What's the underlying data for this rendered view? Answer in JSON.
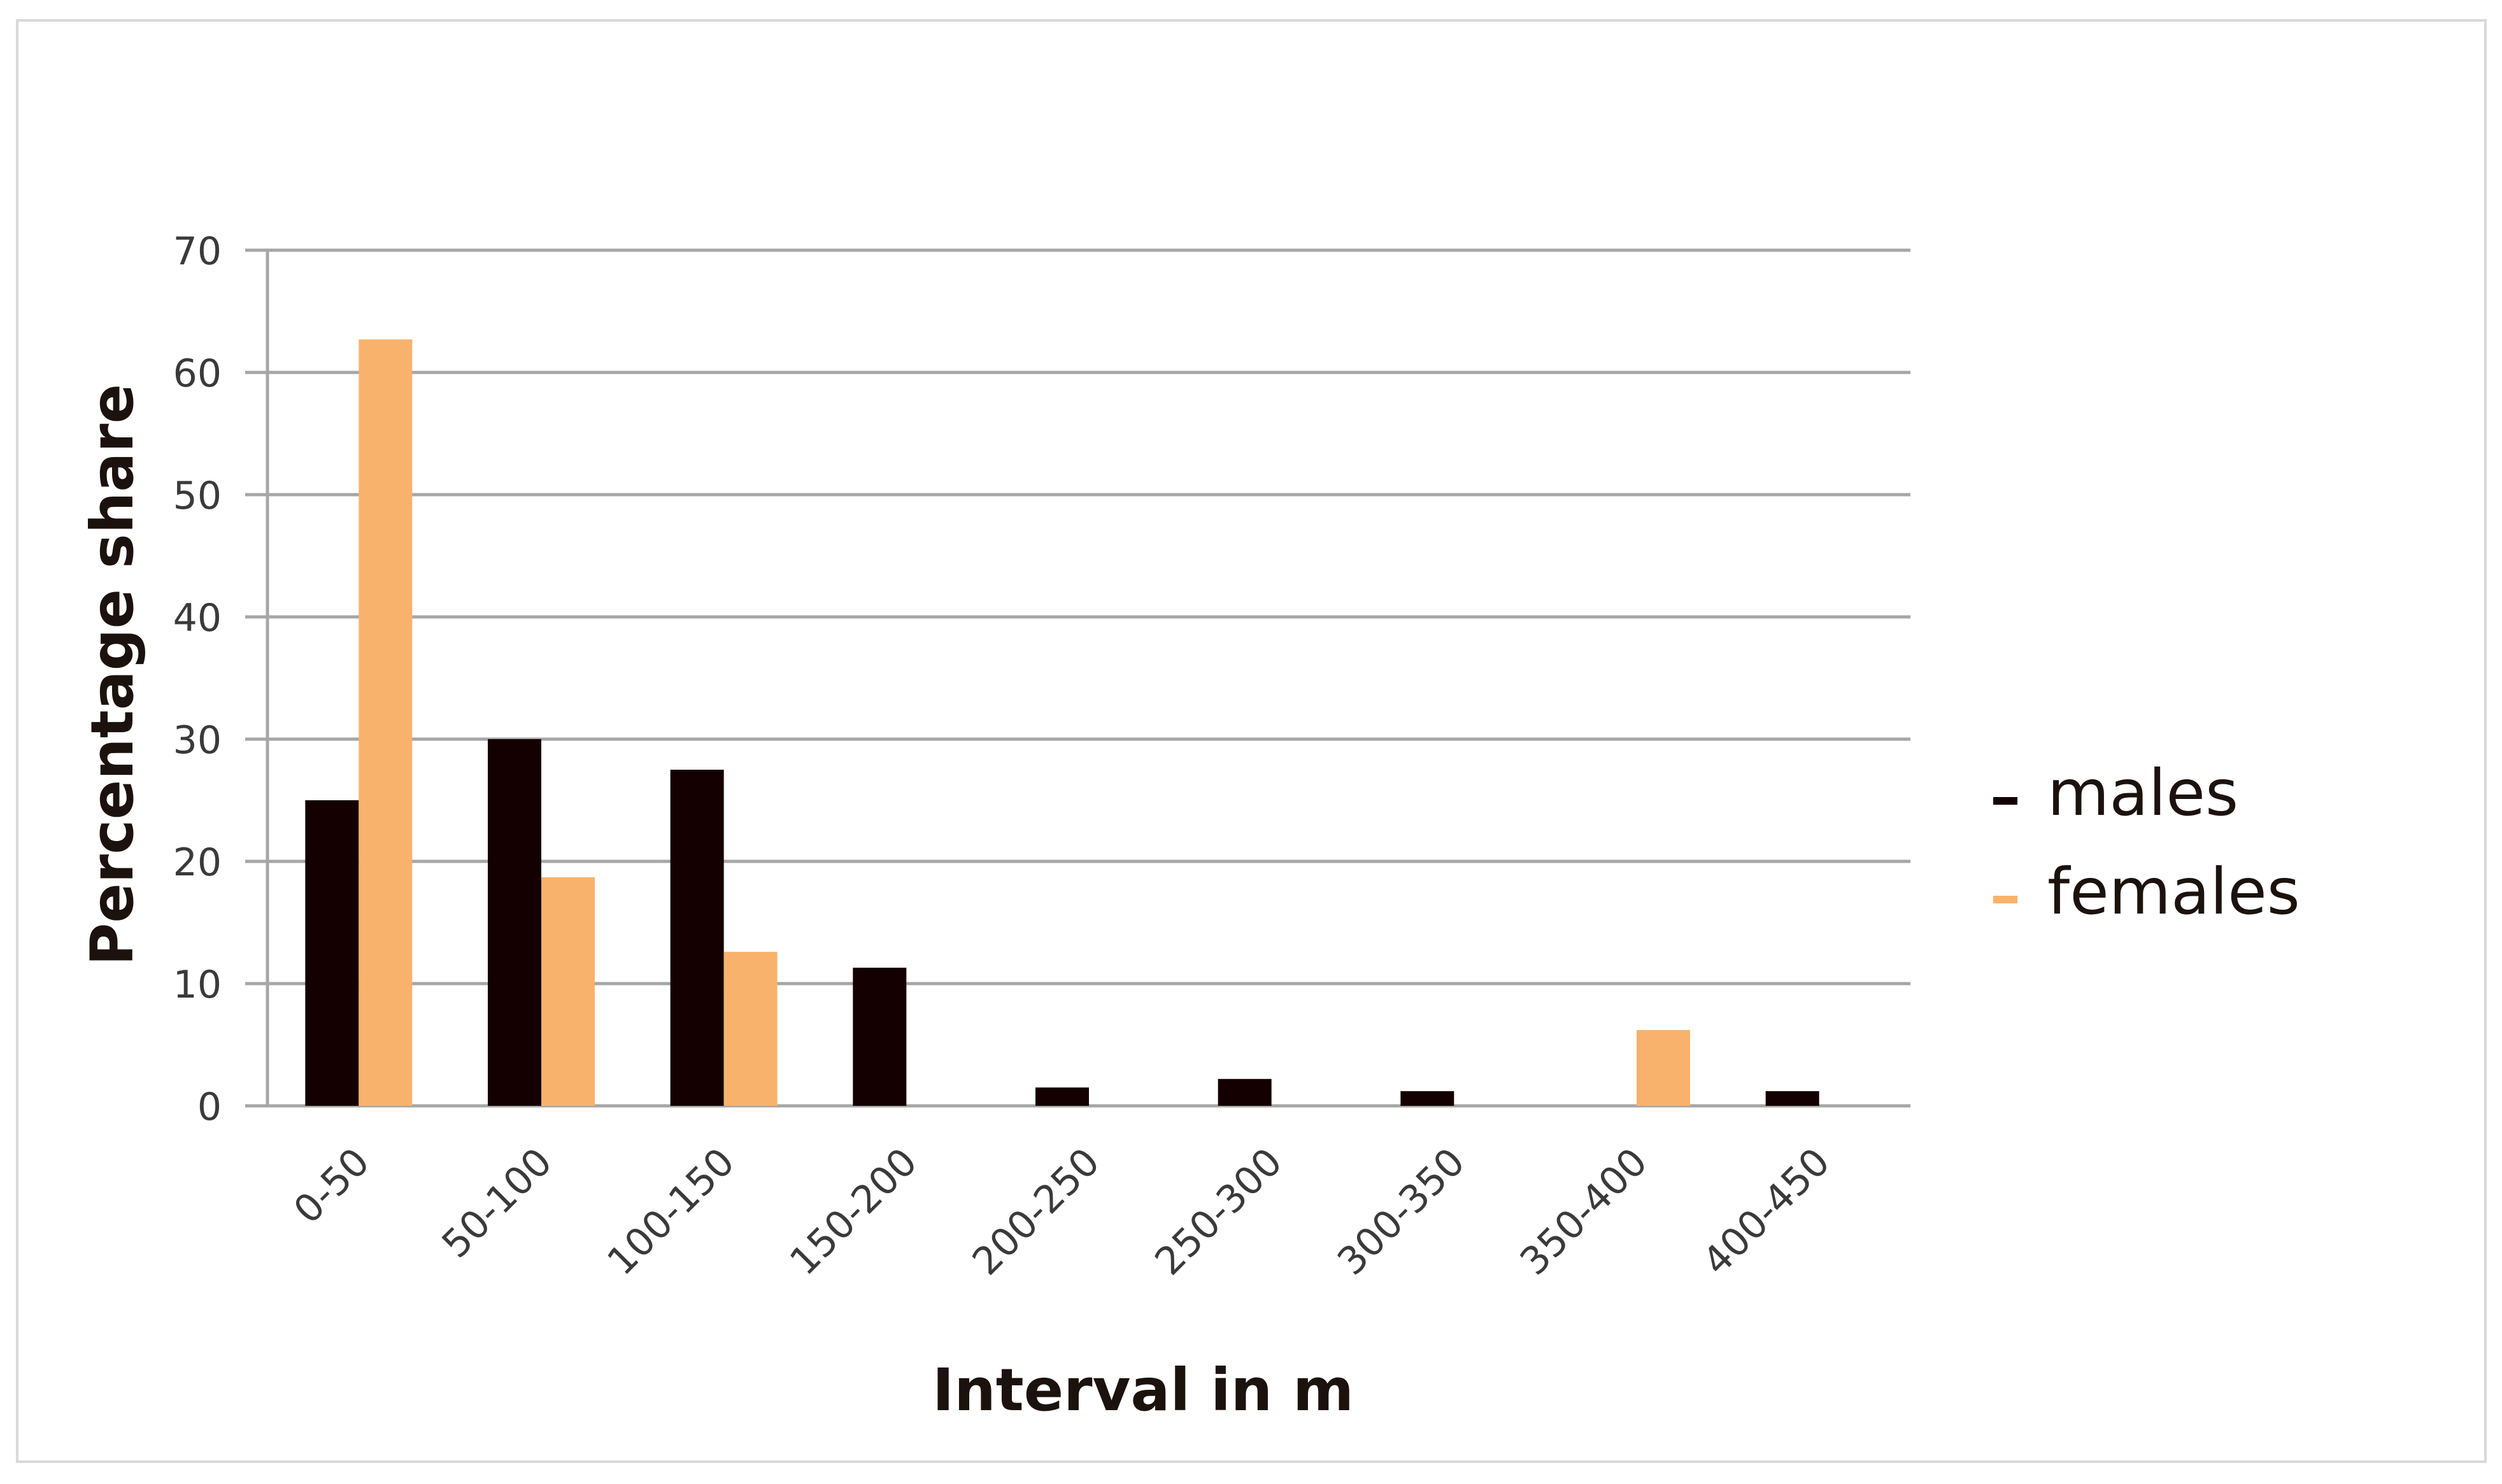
{
  "chart_data": {
    "type": "bar",
    "title": "",
    "xlabel": "Interval in m",
    "ylabel": "Percentage share",
    "categories": [
      "0-50",
      "50-100",
      "100-150",
      "150-200",
      "200-250",
      "250-300",
      "300-350",
      "350-400",
      "400-450"
    ],
    "series": [
      {
        "name": "males",
        "color": "#140000",
        "values": [
          25,
          30,
          27.5,
          11.3,
          1.5,
          2.2,
          1.2,
          0,
          1.2
        ]
      },
      {
        "name": "females",
        "color": "#F9B26C",
        "values": [
          62.7,
          18.7,
          12.6,
          0,
          0,
          0,
          0,
          6.2,
          0
        ]
      }
    ],
    "ylim": [
      0,
      70
    ],
    "yticks": [
      0,
      10,
      20,
      30,
      40,
      50,
      60,
      70
    ],
    "grid": true,
    "legend": "right",
    "gridline_color": "#a6a6a6"
  }
}
